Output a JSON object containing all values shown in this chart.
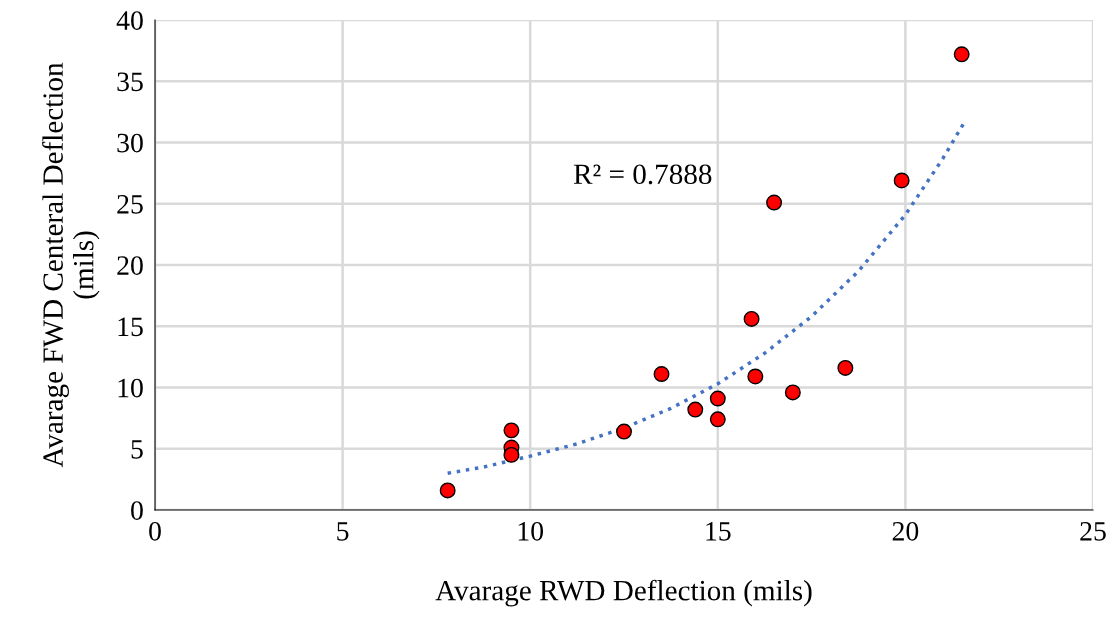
{
  "chart_data": {
    "type": "scatter",
    "xlabel": "Avarage RWD Deflection (mils)",
    "ylabel": "Avarage FWD Centeral Deflection\n(mils)",
    "xlim": [
      0,
      25
    ],
    "xticks": [
      0,
      5,
      10,
      15,
      20,
      25
    ],
    "ylim": [
      0,
      40
    ],
    "yticks": [
      0,
      5,
      10,
      15,
      20,
      25,
      30,
      35,
      40
    ],
    "grid": true,
    "marker": "circle",
    "annotations": [
      "R² = 0.7888"
    ],
    "series": [
      {
        "color": "#ff0000",
        "x": [
          7.8,
          9.5,
          9.5,
          9.5,
          12.5,
          13.5,
          14.4,
          15.0,
          15.0,
          15.9,
          16.0,
          16.5,
          17.0,
          18.4,
          19.9,
          21.5
        ],
        "values": [
          1.6,
          6.5,
          5.1,
          4.5,
          6.4,
          11.1,
          8.2,
          9.1,
          7.4,
          15.6,
          10.9,
          25.1,
          9.6,
          11.6,
          26.9,
          37.2
        ]
      },
      {
        "type": "line",
        "color": "#4472c4",
        "line_style": "dotted",
        "marker": "none",
        "x": [
          7.8,
          8.75,
          10,
          11.25,
          12.5,
          13.75,
          15,
          16.25,
          17.5,
          18.75,
          20,
          21,
          21.6
        ],
        "values": [
          3.0,
          3.5,
          4.4,
          5.4,
          6.7,
          8.3,
          10.3,
          12.8,
          15.8,
          19.5,
          24.1,
          28.7,
          31.8
        ]
      }
    ]
  }
}
